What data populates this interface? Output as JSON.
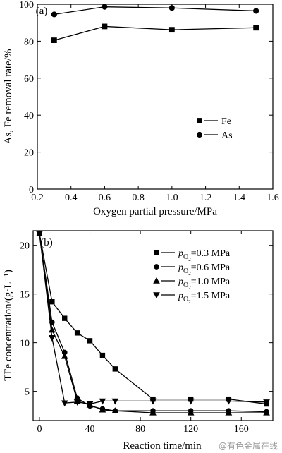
{
  "watermark": "@有色金属在线",
  "chart_data": [
    {
      "panel": "(a)",
      "type": "line",
      "xlabel": "Oxygen partial pressure/MPa",
      "ylabel": "As, Fe removal rate/%",
      "xlim": [
        0.2,
        1.6
      ],
      "ylim": [
        0,
        100
      ],
      "xticks": [
        0.2,
        0.4,
        0.6,
        0.8,
        1.0,
        1.2,
        1.4,
        1.6
      ],
      "yticks": [
        0,
        20,
        40,
        60,
        80,
        100
      ],
      "xtick_labels": [
        "0.2",
        "0.4",
        "0.6",
        "0.8",
        "1.0",
        "1.2",
        "1.4",
        "1.6"
      ],
      "ytick_labels": [
        "0",
        "20",
        "40",
        "60",
        "80",
        "100"
      ],
      "legend_position": "middle-right",
      "grid": false,
      "series": [
        {
          "name": "Fe",
          "marker": "square",
          "x": [
            0.3,
            0.6,
            1.0,
            1.5
          ],
          "y": [
            80.5,
            88.0,
            86.2,
            87.3
          ]
        },
        {
          "name": "As",
          "marker": "circle",
          "x": [
            0.3,
            0.6,
            1.0,
            1.5
          ],
          "y": [
            94.5,
            98.6,
            98.0,
            96.4
          ]
        }
      ]
    },
    {
      "panel": "(b)",
      "type": "line",
      "xlabel": "Reaction time/min",
      "ylabel": "TFe concentration/(g·L⁻¹)",
      "xlim": [
        -5,
        185
      ],
      "ylim": [
        2,
        21.5
      ],
      "xticks": [
        0,
        40,
        80,
        120,
        160
      ],
      "yticks": [
        5,
        10,
        15,
        20
      ],
      "xtick_labels": [
        "0",
        "40",
        "80",
        "120",
        "160"
      ],
      "ytick_labels": [
        "5",
        "10",
        "15",
        "20"
      ],
      "legend_position": "top-right",
      "grid": false,
      "series": [
        {
          "name_sub": "O",
          "name_sub2": "2",
          "name_value": "=0.3 MPa",
          "marker": "square",
          "x": [
            0,
            10,
            20,
            30,
            40,
            50,
            60,
            90,
            120,
            150,
            180
          ],
          "y": [
            21.2,
            14.2,
            12.5,
            11.0,
            10.2,
            8.7,
            7.3,
            4.2,
            4.2,
            4.2,
            3.7
          ]
        },
        {
          "name_sub": "O",
          "name_sub2": "2",
          "name_value": "=0.6 MPa",
          "marker": "circle",
          "x": [
            0,
            10,
            20,
            30,
            40,
            50,
            60,
            90,
            120,
            150,
            180
          ],
          "y": [
            21.2,
            12.1,
            9.0,
            4.3,
            3.5,
            3.2,
            3.0,
            3.0,
            3.0,
            3.0,
            2.9
          ]
        },
        {
          "name_sub": "O",
          "name_sub2": "2",
          "name_value": "=1.0 MPa",
          "marker": "triangle-up",
          "x": [
            0,
            10,
            20,
            30,
            40,
            50,
            60,
            90,
            120,
            150,
            180
          ],
          "y": [
            21.2,
            11.3,
            8.6,
            4.0,
            3.6,
            3.1,
            3.0,
            2.8,
            2.8,
            2.8,
            2.8
          ]
        },
        {
          "name_sub": "O",
          "name_sub2": "2",
          "name_value": "=1.5 MPa",
          "marker": "triangle-down",
          "x": [
            0,
            10,
            20,
            30,
            40,
            50,
            60,
            90,
            120,
            150,
            180
          ],
          "y": [
            21.2,
            10.5,
            3.8,
            3.9,
            3.7,
            4.0,
            4.0,
            4.0,
            4.0,
            4.0,
            3.9
          ]
        }
      ]
    }
  ]
}
